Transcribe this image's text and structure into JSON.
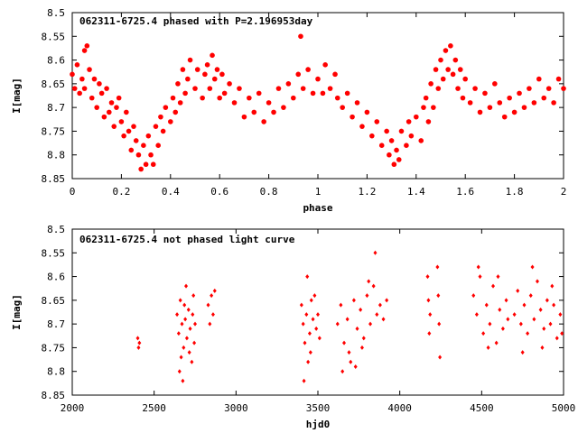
{
  "chart_data": [
    {
      "type": "scatter",
      "title": "062311-6725.4 phased with P=2.196953day",
      "xlabel": "phase",
      "ylabel": "I[mag]",
      "xlim": [
        0,
        2
      ],
      "ylim": [
        8.5,
        8.85
      ],
      "y_inverted": true,
      "grid": false,
      "color": "#ff0000",
      "marker": "filled-circle",
      "x_ticks": [
        "0",
        "0.2",
        "0.4",
        "0.6",
        "0.8",
        "1",
        "1.2",
        "1.4",
        "1.6",
        "1.8",
        "2"
      ],
      "y_ticks": [
        "8.5",
        "8.55",
        "8.6",
        "8.65",
        "8.7",
        "8.75",
        "8.8",
        "8.85"
      ],
      "points": [
        [
          0.0,
          8.63
        ],
        [
          0.01,
          8.66
        ],
        [
          0.02,
          8.61
        ],
        [
          0.03,
          8.67
        ],
        [
          0.04,
          8.64
        ],
        [
          0.05,
          8.58
        ],
        [
          0.05,
          8.66
        ],
        [
          0.06,
          8.57
        ],
        [
          0.07,
          8.62
        ],
        [
          0.08,
          8.68
        ],
        [
          0.09,
          8.64
        ],
        [
          0.1,
          8.7
        ],
        [
          0.11,
          8.65
        ],
        [
          0.12,
          8.67
        ],
        [
          0.13,
          8.72
        ],
        [
          0.14,
          8.66
        ],
        [
          0.15,
          8.71
        ],
        [
          0.16,
          8.69
        ],
        [
          0.17,
          8.74
        ],
        [
          0.18,
          8.7
        ],
        [
          0.19,
          8.68
        ],
        [
          0.2,
          8.73
        ],
        [
          0.21,
          8.76
        ],
        [
          0.22,
          8.71
        ],
        [
          0.23,
          8.75
        ],
        [
          0.24,
          8.79
        ],
        [
          0.25,
          8.74
        ],
        [
          0.26,
          8.77
        ],
        [
          0.27,
          8.8
        ],
        [
          0.28,
          8.83
        ],
        [
          0.29,
          8.78
        ],
        [
          0.3,
          8.82
        ],
        [
          0.31,
          8.76
        ],
        [
          0.32,
          8.8
        ],
        [
          0.33,
          8.82
        ],
        [
          0.34,
          8.74
        ],
        [
          0.35,
          8.78
        ],
        [
          0.36,
          8.72
        ],
        [
          0.37,
          8.75
        ],
        [
          0.38,
          8.7
        ],
        [
          0.4,
          8.73
        ],
        [
          0.41,
          8.68
        ],
        [
          0.42,
          8.71
        ],
        [
          0.43,
          8.65
        ],
        [
          0.44,
          8.69
        ],
        [
          0.45,
          8.62
        ],
        [
          0.46,
          8.67
        ],
        [
          0.47,
          8.64
        ],
        [
          0.48,
          8.6
        ],
        [
          0.5,
          8.66
        ],
        [
          0.51,
          8.62
        ],
        [
          0.53,
          8.68
        ],
        [
          0.54,
          8.63
        ],
        [
          0.55,
          8.61
        ],
        [
          0.56,
          8.66
        ],
        [
          0.57,
          8.59
        ],
        [
          0.58,
          8.64
        ],
        [
          0.59,
          8.62
        ],
        [
          0.6,
          8.68
        ],
        [
          0.61,
          8.63
        ],
        [
          0.62,
          8.67
        ],
        [
          0.64,
          8.65
        ],
        [
          0.66,
          8.69
        ],
        [
          0.68,
          8.66
        ],
        [
          0.7,
          8.72
        ],
        [
          0.72,
          8.68
        ],
        [
          0.74,
          8.71
        ],
        [
          0.76,
          8.67
        ],
        [
          0.78,
          8.73
        ],
        [
          0.8,
          8.69
        ],
        [
          0.82,
          8.71
        ],
        [
          0.84,
          8.66
        ],
        [
          0.86,
          8.7
        ],
        [
          0.88,
          8.65
        ],
        [
          0.9,
          8.68
        ],
        [
          0.92,
          8.63
        ],
        [
          0.93,
          8.55
        ],
        [
          0.94,
          8.66
        ],
        [
          0.96,
          8.62
        ],
        [
          0.98,
          8.67
        ],
        [
          1.0,
          8.64
        ],
        [
          1.02,
          8.67
        ],
        [
          1.03,
          8.61
        ],
        [
          1.05,
          8.66
        ],
        [
          1.07,
          8.63
        ],
        [
          1.08,
          8.68
        ],
        [
          1.1,
          8.7
        ],
        [
          1.12,
          8.67
        ],
        [
          1.14,
          8.72
        ],
        [
          1.16,
          8.69
        ],
        [
          1.18,
          8.74
        ],
        [
          1.2,
          8.71
        ],
        [
          1.22,
          8.76
        ],
        [
          1.24,
          8.73
        ],
        [
          1.26,
          8.78
        ],
        [
          1.28,
          8.75
        ],
        [
          1.29,
          8.8
        ],
        [
          1.3,
          8.77
        ],
        [
          1.31,
          8.82
        ],
        [
          1.32,
          8.79
        ],
        [
          1.33,
          8.81
        ],
        [
          1.34,
          8.75
        ],
        [
          1.36,
          8.78
        ],
        [
          1.37,
          8.73
        ],
        [
          1.38,
          8.76
        ],
        [
          1.4,
          8.72
        ],
        [
          1.42,
          8.77
        ],
        [
          1.43,
          8.7
        ],
        [
          1.44,
          8.68
        ],
        [
          1.45,
          8.73
        ],
        [
          1.46,
          8.65
        ],
        [
          1.47,
          8.7
        ],
        [
          1.48,
          8.62
        ],
        [
          1.49,
          8.66
        ],
        [
          1.5,
          8.6
        ],
        [
          1.51,
          8.64
        ],
        [
          1.52,
          8.58
        ],
        [
          1.53,
          8.62
        ],
        [
          1.54,
          8.57
        ],
        [
          1.55,
          8.63
        ],
        [
          1.56,
          8.6
        ],
        [
          1.57,
          8.66
        ],
        [
          1.58,
          8.62
        ],
        [
          1.59,
          8.68
        ],
        [
          1.6,
          8.64
        ],
        [
          1.62,
          8.69
        ],
        [
          1.64,
          8.66
        ],
        [
          1.66,
          8.71
        ],
        [
          1.68,
          8.67
        ],
        [
          1.7,
          8.7
        ],
        [
          1.72,
          8.65
        ],
        [
          1.74,
          8.69
        ],
        [
          1.76,
          8.72
        ],
        [
          1.78,
          8.68
        ],
        [
          1.8,
          8.71
        ],
        [
          1.82,
          8.67
        ],
        [
          1.84,
          8.7
        ],
        [
          1.86,
          8.66
        ],
        [
          1.88,
          8.69
        ],
        [
          1.9,
          8.64
        ],
        [
          1.92,
          8.68
        ],
        [
          1.94,
          8.66
        ],
        [
          1.96,
          8.69
        ],
        [
          1.98,
          8.64
        ],
        [
          2.0,
          8.66
        ]
      ]
    },
    {
      "type": "scatter",
      "title": "062311-6725.4 not phased light curve",
      "xlabel": "hjd0",
      "ylabel": "I[mag]",
      "xlim": [
        2000,
        5000
      ],
      "ylim": [
        8.5,
        8.85
      ],
      "y_inverted": true,
      "grid": false,
      "color": "#ff0000",
      "marker": "filled-diamond",
      "x_ticks": [
        "2000",
        "2500",
        "3000",
        "3500",
        "4000",
        "4500",
        "5000"
      ],
      "y_ticks": [
        "8.5",
        "8.55",
        "8.6",
        "8.65",
        "8.7",
        "8.75",
        "8.8",
        "8.85"
      ],
      "points": [
        [
          2400,
          8.73
        ],
        [
          2405,
          8.75
        ],
        [
          2410,
          8.74
        ],
        [
          2640,
          8.68
        ],
        [
          2650,
          8.72
        ],
        [
          2660,
          8.65
        ],
        [
          2670,
          8.7
        ],
        [
          2680,
          8.75
        ],
        [
          2690,
          8.69
        ],
        [
          2700,
          8.73
        ],
        [
          2710,
          8.67
        ],
        [
          2720,
          8.71
        ],
        [
          2730,
          8.78
        ],
        [
          2740,
          8.64
        ],
        [
          2750,
          8.7
        ],
        [
          2655,
          8.8
        ],
        [
          2675,
          8.82
        ],
        [
          2695,
          8.62
        ],
        [
          2715,
          8.76
        ],
        [
          2735,
          8.68
        ],
        [
          2745,
          8.74
        ],
        [
          2665,
          8.77
        ],
        [
          2685,
          8.66
        ],
        [
          2830,
          8.66
        ],
        [
          2840,
          8.7
        ],
        [
          2850,
          8.64
        ],
        [
          2860,
          8.68
        ],
        [
          2870,
          8.63
        ],
        [
          3400,
          8.66
        ],
        [
          3410,
          8.7
        ],
        [
          3420,
          8.74
        ],
        [
          3430,
          8.68
        ],
        [
          3440,
          8.78
        ],
        [
          3450,
          8.72
        ],
        [
          3460,
          8.65
        ],
        [
          3470,
          8.69
        ],
        [
          3480,
          8.64
        ],
        [
          3490,
          8.71
        ],
        [
          3415,
          8.82
        ],
        [
          3435,
          8.6
        ],
        [
          3455,
          8.76
        ],
        [
          3500,
          8.68
        ],
        [
          3510,
          8.73
        ],
        [
          3620,
          8.7
        ],
        [
          3640,
          8.66
        ],
        [
          3660,
          8.74
        ],
        [
          3680,
          8.69
        ],
        [
          3700,
          8.78
        ],
        [
          3720,
          8.65
        ],
        [
          3740,
          8.71
        ],
        [
          3760,
          8.67
        ],
        [
          3780,
          8.73
        ],
        [
          3800,
          8.64
        ],
        [
          3820,
          8.7
        ],
        [
          3840,
          8.62
        ],
        [
          3860,
          8.68
        ],
        [
          3650,
          8.8
        ],
        [
          3690,
          8.76
        ],
        [
          3730,
          8.79
        ],
        [
          3770,
          8.75
        ],
        [
          3810,
          8.61
        ],
        [
          3850,
          8.55
        ],
        [
          3880,
          8.66
        ],
        [
          3900,
          8.69
        ],
        [
          3920,
          8.65
        ],
        [
          4170,
          8.6
        ],
        [
          4175,
          8.65
        ],
        [
          4180,
          8.72
        ],
        [
          4185,
          8.68
        ],
        [
          4230,
          8.58
        ],
        [
          4235,
          8.64
        ],
        [
          4240,
          8.7
        ],
        [
          4245,
          8.77
        ],
        [
          4450,
          8.64
        ],
        [
          4470,
          8.68
        ],
        [
          4490,
          8.6
        ],
        [
          4510,
          8.72
        ],
        [
          4530,
          8.66
        ],
        [
          4550,
          8.7
        ],
        [
          4570,
          8.62
        ],
        [
          4590,
          8.74
        ],
        [
          4610,
          8.67
        ],
        [
          4630,
          8.71
        ],
        [
          4650,
          8.65
        ],
        [
          4480,
          8.58
        ],
        [
          4540,
          8.75
        ],
        [
          4600,
          8.6
        ],
        [
          4660,
          8.69
        ],
        [
          4700,
          8.68
        ],
        [
          4720,
          8.63
        ],
        [
          4740,
          8.7
        ],
        [
          4760,
          8.66
        ],
        [
          4780,
          8.72
        ],
        [
          4800,
          8.64
        ],
        [
          4820,
          8.69
        ],
        [
          4840,
          8.61
        ],
        [
          4860,
          8.67
        ],
        [
          4880,
          8.71
        ],
        [
          4900,
          8.65
        ],
        [
          4920,
          8.7
        ],
        [
          4940,
          8.66
        ],
        [
          4960,
          8.73
        ],
        [
          4980,
          8.68
        ],
        [
          4750,
          8.76
        ],
        [
          4810,
          8.58
        ],
        [
          4870,
          8.75
        ],
        [
          4930,
          8.62
        ],
        [
          4990,
          8.72
        ]
      ]
    }
  ]
}
